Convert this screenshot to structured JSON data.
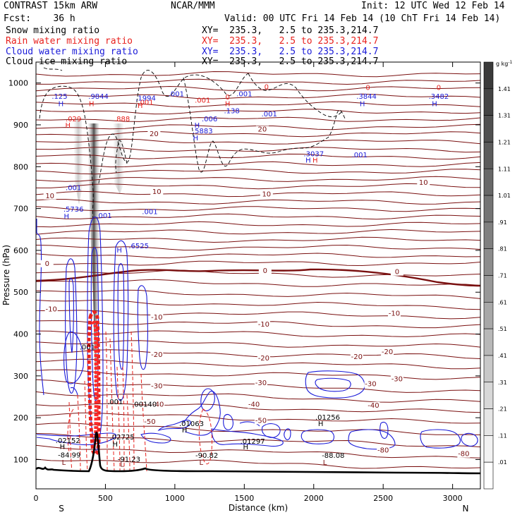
{
  "header": {
    "model": "CONTRAST 15km ARW",
    "org": "NCAR/MMM",
    "init": "Init: 12 UTC Wed 12 Feb 14",
    "fcst": "Fcst:    36 h",
    "valid": "Valid: 00 UTC Fri 14 Feb 14 (10 ChT Fri 14 Feb 14)"
  },
  "fields": [
    {
      "name": "Snow mixing ratio",
      "xy": "XY=  235.3,   2.5 to 235.3,214.7",
      "color": "#000000"
    },
    {
      "name": "Rain water mixing ratio",
      "xy": "XY=  235.3,   2.5 to 235.3,214.7",
      "color": "#e8221e"
    },
    {
      "name": "Cloud water mixing ratio",
      "xy": "XY=  235.3,   2.5 to 235.3,214.7",
      "color": "#1a1ad8"
    },
    {
      "name": "Cloud ice mixing ratio",
      "xy": "XY=  235.3,   2.5 to 235.3,214.7",
      "color": "#000000"
    }
  ],
  "chart_data": {
    "type": "cross-section",
    "xlabel": "Distance (km)",
    "ylabel": "Pressure (hPa)",
    "xlim": [
      0,
      3200
    ],
    "ylim": [
      1050,
      30
    ],
    "x_ticks": [
      0,
      500,
      1000,
      1500,
      2000,
      2500,
      3000
    ],
    "y_ticks": [
      100,
      200,
      300,
      400,
      500,
      600,
      700,
      800,
      900,
      1000
    ],
    "endpoints": {
      "left": "S",
      "right": "N"
    },
    "colorbar": {
      "unit": "g kg",
      "unit_exp": "-1",
      "labels": [
        "1.41",
        "1.31",
        "1.21",
        "1.11",
        "1.01",
        ".91",
        ".81",
        ".71",
        ".61",
        ".51",
        ".41",
        ".31",
        ".21",
        ".11",
        ".01"
      ],
      "shade_colors": [
        "#3a3a3a",
        "#444444",
        "#505050",
        "#5c5c5c",
        "#686868",
        "#747474",
        "#808080",
        "#8c8c8c",
        "#989898",
        "#a8a8a8",
        "#b8b8b8",
        "#c8c8c8",
        "#d8d8d8",
        "#e6e6e6",
        "#f2f2f2",
        "#ffffff"
      ]
    },
    "temperature_labels": [
      {
        "text": "-80",
        "x": 2500,
        "p": 117
      },
      {
        "text": "-80",
        "x": 3080,
        "p": 108
      },
      {
        "text": "-50",
        "x": 820,
        "p": 185
      },
      {
        "text": "-50",
        "x": 1620,
        "p": 188
      },
      {
        "text": "-40",
        "x": 880,
        "p": 226
      },
      {
        "text": "-40",
        "x": 1570,
        "p": 226
      },
      {
        "text": "-40",
        "x": 2430,
        "p": 224
      },
      {
        "text": "-30",
        "x": 870,
        "p": 270
      },
      {
        "text": "-30",
        "x": 1620,
        "p": 278
      },
      {
        "text": "-30",
        "x": 2410,
        "p": 275
      },
      {
        "text": "-30",
        "x": 2600,
        "p": 287
      },
      {
        "text": "-20",
        "x": 870,
        "p": 345
      },
      {
        "text": "-20",
        "x": 1640,
        "p": 337
      },
      {
        "text": "-20",
        "x": 2310,
        "p": 340
      },
      {
        "text": "-20",
        "x": 2530,
        "p": 352
      },
      {
        "text": "-10",
        "x": 110,
        "p": 454
      },
      {
        "text": "-10",
        "x": 870,
        "p": 435
      },
      {
        "text": "-10",
        "x": 1640,
        "p": 418
      },
      {
        "text": "-10",
        "x": 2580,
        "p": 444
      },
      {
        "text": "0",
        "x": 80,
        "p": 563
      },
      {
        "text": "0",
        "x": 1650,
        "p": 546
      },
      {
        "text": "0",
        "x": 2600,
        "p": 543
      },
      {
        "text": "10",
        "x": 100,
        "p": 725
      },
      {
        "text": "10",
        "x": 870,
        "p": 735
      },
      {
        "text": "10",
        "x": 1660,
        "p": 729
      },
      {
        "text": "10",
        "x": 2790,
        "p": 757
      },
      {
        "text": "20",
        "x": 850,
        "p": 873
      },
      {
        "text": "20",
        "x": 1630,
        "p": 884
      }
    ],
    "maxima_labels": [
      {
        "text": "L",
        "x": 200,
        "p": 87,
        "color": "#7a1010"
      },
      {
        "text": "L",
        "x": 620,
        "p": 83,
        "color": "#7a1010"
      },
      {
        "text": "L",
        "x": 1190,
        "p": 87,
        "color": "#7a1010"
      },
      {
        "text": "L",
        "x": 2080,
        "p": 87,
        "color": "#7a1010"
      },
      {
        "text": "-84.99",
        "x": 240,
        "p": 105,
        "color": "#000000"
      },
      {
        "text": "-91.23",
        "x": 670,
        "p": 95,
        "color": "#000000"
      },
      {
        "text": "-90.82",
        "x": 1230,
        "p": 104,
        "color": "#000000"
      },
      {
        "text": "-88.08",
        "x": 2140,
        "p": 104,
        "color": "#000000"
      },
      {
        "text": "H",
        "x": 190,
        "p": 125,
        "color": "#000000"
      },
      {
        "text": ".02152",
        "x": 230,
        "p": 140,
        "color": "#000000"
      },
      {
        "text": "H",
        "x": 570,
        "p": 131,
        "color": "#000000"
      },
      {
        "text": ".02725",
        "x": 620,
        "p": 148,
        "color": "#000000"
      },
      {
        "text": "H",
        "x": 1510,
        "p": 124,
        "color": "#000000"
      },
      {
        "text": ".01297",
        "x": 1560,
        "p": 138,
        "color": "#000000"
      },
      {
        "text": "H",
        "x": 1070,
        "p": 165,
        "color": "#000000"
      },
      {
        "text": ".01063",
        "x": 1120,
        "p": 180,
        "color": "#000000"
      },
      {
        "text": "H",
        "x": 2050,
        "p": 180,
        "color": "#000000"
      },
      {
        "text": ".01256",
        "x": 2100,
        "p": 195,
        "color": "#000000"
      },
      {
        "text": ".001",
        "x": 570,
        "p": 232,
        "color": "#000000"
      },
      {
        "text": ".00140",
        "x": 780,
        "p": 226,
        "color": "#000000"
      },
      {
        "text": ".001",
        "x": 370,
        "p": 363,
        "color": "#000000"
      },
      {
        "text": ".6525",
        "x": 740,
        "p": 605,
        "color": "#1a1ad8"
      },
      {
        "text": "H",
        "x": 600,
        "p": 595,
        "color": "#1a1ad8"
      },
      {
        "text": "H",
        "x": 220,
        "p": 676,
        "color": "#1a1ad8"
      },
      {
        "text": ".5736",
        "x": 270,
        "p": 693,
        "color": "#1a1ad8"
      },
      {
        "text": ".001",
        "x": 490,
        "p": 677,
        "color": "#1a1ad8"
      },
      {
        "text": ".001",
        "x": 820,
        "p": 687,
        "color": "#1a1ad8"
      },
      {
        "text": ".001",
        "x": 270,
        "p": 744,
        "color": "#1a1ad8"
      },
      {
        "text": "H",
        "x": 1960,
        "p": 810,
        "color": "#1a1ad8"
      },
      {
        "text": ".3037",
        "x": 2000,
        "p": 825,
        "color": "#1a1ad8"
      },
      {
        "text": ".001",
        "x": 2330,
        "p": 822,
        "color": "#1a1ad8"
      },
      {
        "text": "H",
        "x": 2010,
        "p": 810,
        "color": "#e8221e"
      },
      {
        "text": "H",
        "x": 1150,
        "p": 863,
        "color": "#1a1ad8"
      },
      {
        "text": ".5883",
        "x": 1200,
        "p": 880,
        "color": "#1a1ad8"
      },
      {
        "text": "H",
        "x": 1160,
        "p": 893,
        "color": "#1a1ad8"
      },
      {
        "text": ".006",
        "x": 1250,
        "p": 908,
        "color": "#1a1ad8"
      },
      {
        "text": "H",
        "x": 230,
        "p": 893,
        "color": "#e8221e"
      },
      {
        "text": ".029",
        "x": 270,
        "p": 908,
        "color": "#e8221e"
      },
      {
        "text": ".888",
        "x": 620,
        "p": 908,
        "color": "#e8221e"
      },
      {
        "text": ".001",
        "x": 790,
        "p": 948,
        "color": "#e8221e"
      },
      {
        "text": ".001",
        "x": 1200,
        "p": 953,
        "color": "#e8221e"
      },
      {
        "text": ".138",
        "x": 1410,
        "p": 928,
        "color": "#1a1ad8"
      },
      {
        "text": ".001",
        "x": 1680,
        "p": 920,
        "color": "#1a1ad8"
      },
      {
        "text": ".001",
        "x": 1500,
        "p": 968,
        "color": "#1a1ad8"
      },
      {
        "text": "H",
        "x": 1380,
        "p": 945,
        "color": "#e8221e"
      },
      {
        "text": "0",
        "x": 1380,
        "p": 961,
        "color": "#e8221e"
      },
      {
        "text": "0",
        "x": 1660,
        "p": 985,
        "color": "#e8221e"
      },
      {
        "text": "H",
        "x": 750,
        "p": 940,
        "color": "#e8221e"
      },
      {
        "text": ".1994",
        "x": 790,
        "p": 958,
        "color": "#1a1ad8"
      },
      {
        "text": "H",
        "x": 180,
        "p": 945,
        "color": "#1a1ad8"
      },
      {
        "text": ".125",
        "x": 170,
        "p": 962,
        "color": "#1a1ad8"
      },
      {
        "text": "H",
        "x": 400,
        "p": 945,
        "color": "#e8221e"
      },
      {
        "text": ".9844",
        "x": 450,
        "p": 962,
        "color": "#1a1ad8"
      },
      {
        "text": ".001",
        "x": 1010,
        "p": 968,
        "color": "#1a1ad8"
      },
      {
        "text": "H",
        "x": 2350,
        "p": 945,
        "color": "#1a1ad8"
      },
      {
        "text": ".3844",
        "x": 2380,
        "p": 962,
        "color": "#1a1ad8"
      },
      {
        "text": "0",
        "x": 2390,
        "p": 983,
        "color": "#e8221e"
      },
      {
        "text": "H",
        "x": 2870,
        "p": 945,
        "color": "#1a1ad8"
      },
      {
        "text": ".3482",
        "x": 2900,
        "p": 962,
        "color": "#1a1ad8"
      },
      {
        "text": "0",
        "x": 2900,
        "p": 983,
        "color": "#e8221e"
      }
    ]
  }
}
